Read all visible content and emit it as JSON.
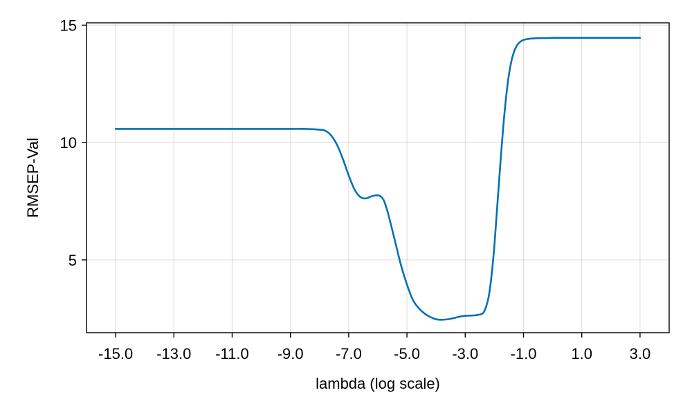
{
  "chart_data": {
    "type": "line",
    "title": "",
    "xlabel": "lambda (log scale)",
    "ylabel": "RMSEP-Val",
    "xlim": [
      -16.0,
      4.0
    ],
    "ylim": [
      1.9,
      15.1
    ],
    "x_ticks": [
      -15.0,
      -13.0,
      -11.0,
      -9.0,
      -7.0,
      -5.0,
      -3.0,
      -1.0,
      1.0,
      3.0
    ],
    "x_tick_labels": [
      "-15.0",
      "-13.0",
      "-11.0",
      "-9.0",
      "-7.0",
      "-5.0",
      "-3.0",
      "-1.0",
      "1.0",
      "3.0"
    ],
    "y_ticks": [
      5,
      10,
      15
    ],
    "y_tick_labels": [
      "5",
      "10",
      "15"
    ],
    "grid": true,
    "legend": "none",
    "series": [
      {
        "color": "#0072b2",
        "x": [
          -15.0,
          -12.0,
          -10.0,
          -9.0,
          -8.5,
          -8.0,
          -7.8,
          -7.6,
          -7.4,
          -7.2,
          -7.0,
          -6.8,
          -6.6,
          -6.4,
          -6.2,
          -6.0,
          -5.9,
          -5.8,
          -5.7,
          -5.6,
          -5.4,
          -5.2,
          -5.0,
          -4.8,
          -4.6,
          -4.4,
          -4.2,
          -4.0,
          -3.8,
          -3.6,
          -3.4,
          -3.2,
          -3.0,
          -2.8,
          -2.6,
          -2.4,
          -2.3,
          -2.2,
          -2.1,
          -2.0,
          -1.9,
          -1.8,
          -1.7,
          -1.6,
          -1.5,
          -1.4,
          -1.3,
          -1.2,
          -1.1,
          -1.0,
          -0.8,
          -0.6,
          -0.4,
          -0.2,
          0.0,
          0.5,
          1.0,
          2.0,
          3.0
        ],
        "y": [
          10.58,
          10.58,
          10.58,
          10.58,
          10.58,
          10.55,
          10.5,
          10.3,
          9.9,
          9.3,
          8.6,
          8.0,
          7.68,
          7.62,
          7.72,
          7.75,
          7.7,
          7.55,
          7.2,
          6.75,
          5.75,
          4.75,
          3.95,
          3.3,
          2.95,
          2.72,
          2.57,
          2.47,
          2.45,
          2.47,
          2.52,
          2.58,
          2.62,
          2.63,
          2.65,
          2.72,
          2.95,
          3.4,
          4.3,
          5.6,
          7.3,
          9.0,
          10.6,
          11.9,
          12.9,
          13.55,
          13.95,
          14.18,
          14.3,
          14.37,
          14.42,
          14.44,
          14.45,
          14.45,
          14.46,
          14.46,
          14.46,
          14.46,
          14.46
        ]
      }
    ]
  }
}
